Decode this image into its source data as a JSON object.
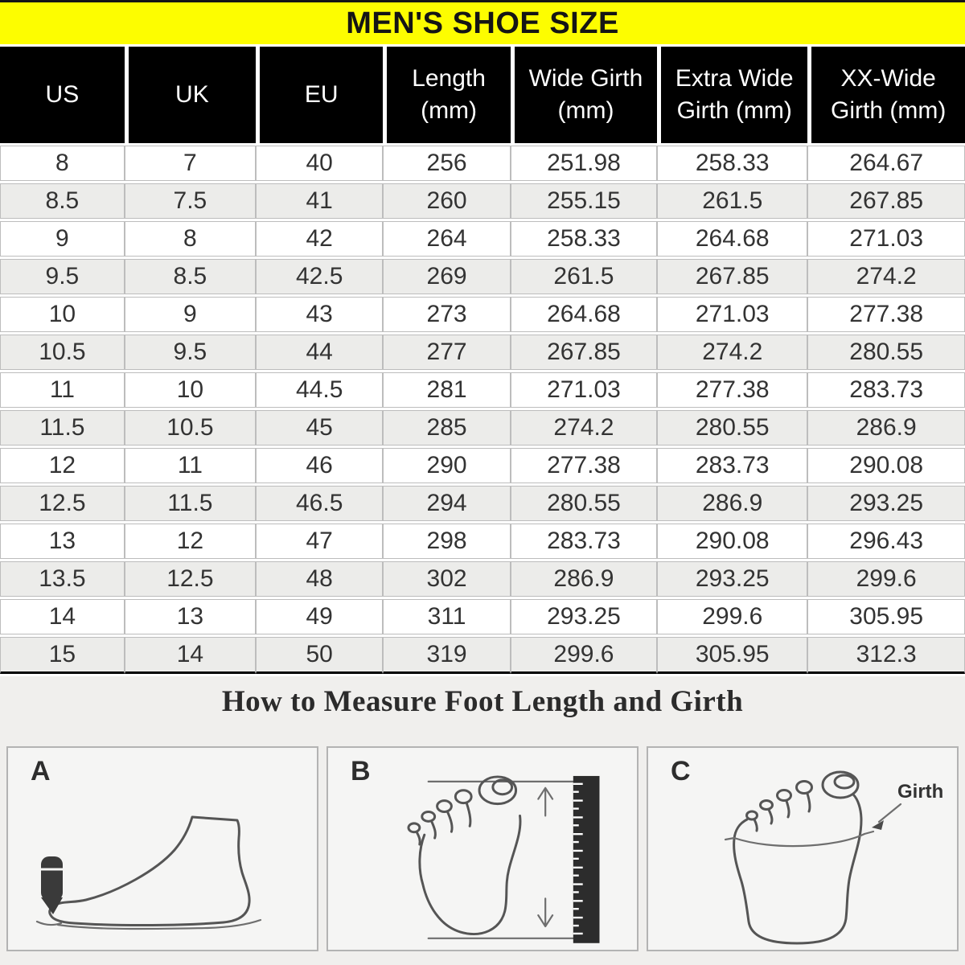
{
  "chart_data": {
    "type": "table",
    "title": "MEN'S SHOE SIZE",
    "columns": [
      "US",
      "UK",
      "EU",
      "Length (mm)",
      "Wide Girth (mm)",
      "Extra Wide Girth (mm)",
      "XX-Wide Girth (mm)"
    ],
    "rows": [
      [
        "8",
        "7",
        "40",
        "256",
        "251.98",
        "258.33",
        "264.67"
      ],
      [
        "8.5",
        "7.5",
        "41",
        "260",
        "255.15",
        "261.5",
        "267.85"
      ],
      [
        "9",
        "8",
        "42",
        "264",
        "258.33",
        "264.68",
        "271.03"
      ],
      [
        "9.5",
        "8.5",
        "42.5",
        "269",
        "261.5",
        "267.85",
        "274.2"
      ],
      [
        "10",
        "9",
        "43",
        "273",
        "264.68",
        "271.03",
        "277.38"
      ],
      [
        "10.5",
        "9.5",
        "44",
        "277",
        "267.85",
        "274.2",
        "280.55"
      ],
      [
        "11",
        "10",
        "44.5",
        "281",
        "271.03",
        "277.38",
        "283.73"
      ],
      [
        "11.5",
        "10.5",
        "45",
        "285",
        "274.2",
        "280.55",
        "286.9"
      ],
      [
        "12",
        "11",
        "46",
        "290",
        "277.38",
        "283.73",
        "290.08"
      ],
      [
        "12.5",
        "11.5",
        "46.5",
        "294",
        "280.55",
        "286.9",
        "293.25"
      ],
      [
        "13",
        "12",
        "47",
        "298",
        "283.73",
        "290.08",
        "296.43"
      ],
      [
        "13.5",
        "12.5",
        "48",
        "302",
        "286.9",
        "293.25",
        "299.6"
      ],
      [
        "14",
        "13",
        "49",
        "311",
        "293.25",
        "299.6",
        "305.95"
      ],
      [
        "15",
        "14",
        "50",
        "319",
        "299.6",
        "305.95",
        "312.3"
      ]
    ]
  },
  "table": {
    "header_lines": [
      [
        "US"
      ],
      [
        "UK"
      ],
      [
        "EU"
      ],
      [
        "Length",
        "(mm)"
      ],
      [
        "Wide Girth",
        "(mm)"
      ],
      [
        "Extra Wide",
        "Girth (mm)"
      ],
      [
        "XX-Wide",
        "Girth (mm)"
      ]
    ]
  },
  "measure": {
    "heading": "How to Measure Foot Length and Girth",
    "panels": [
      {
        "label": "A",
        "icon": "foot-side-pencil-length-diagram"
      },
      {
        "label": "B",
        "icon": "foot-top-ruler-length-diagram"
      },
      {
        "label": "C",
        "icon": "foot-top-girth-tape-diagram",
        "annotation": "Girth"
      }
    ]
  },
  "colors": {
    "title_bg": "#fdfd00",
    "title_text": "#151515",
    "header_bg": "#000000",
    "header_text": "#ffffff",
    "row_alt_bg": "#ececea",
    "cell_border": "#bdbdbd",
    "section_bg": "#f0efed",
    "diagram_stroke": "#555555"
  }
}
